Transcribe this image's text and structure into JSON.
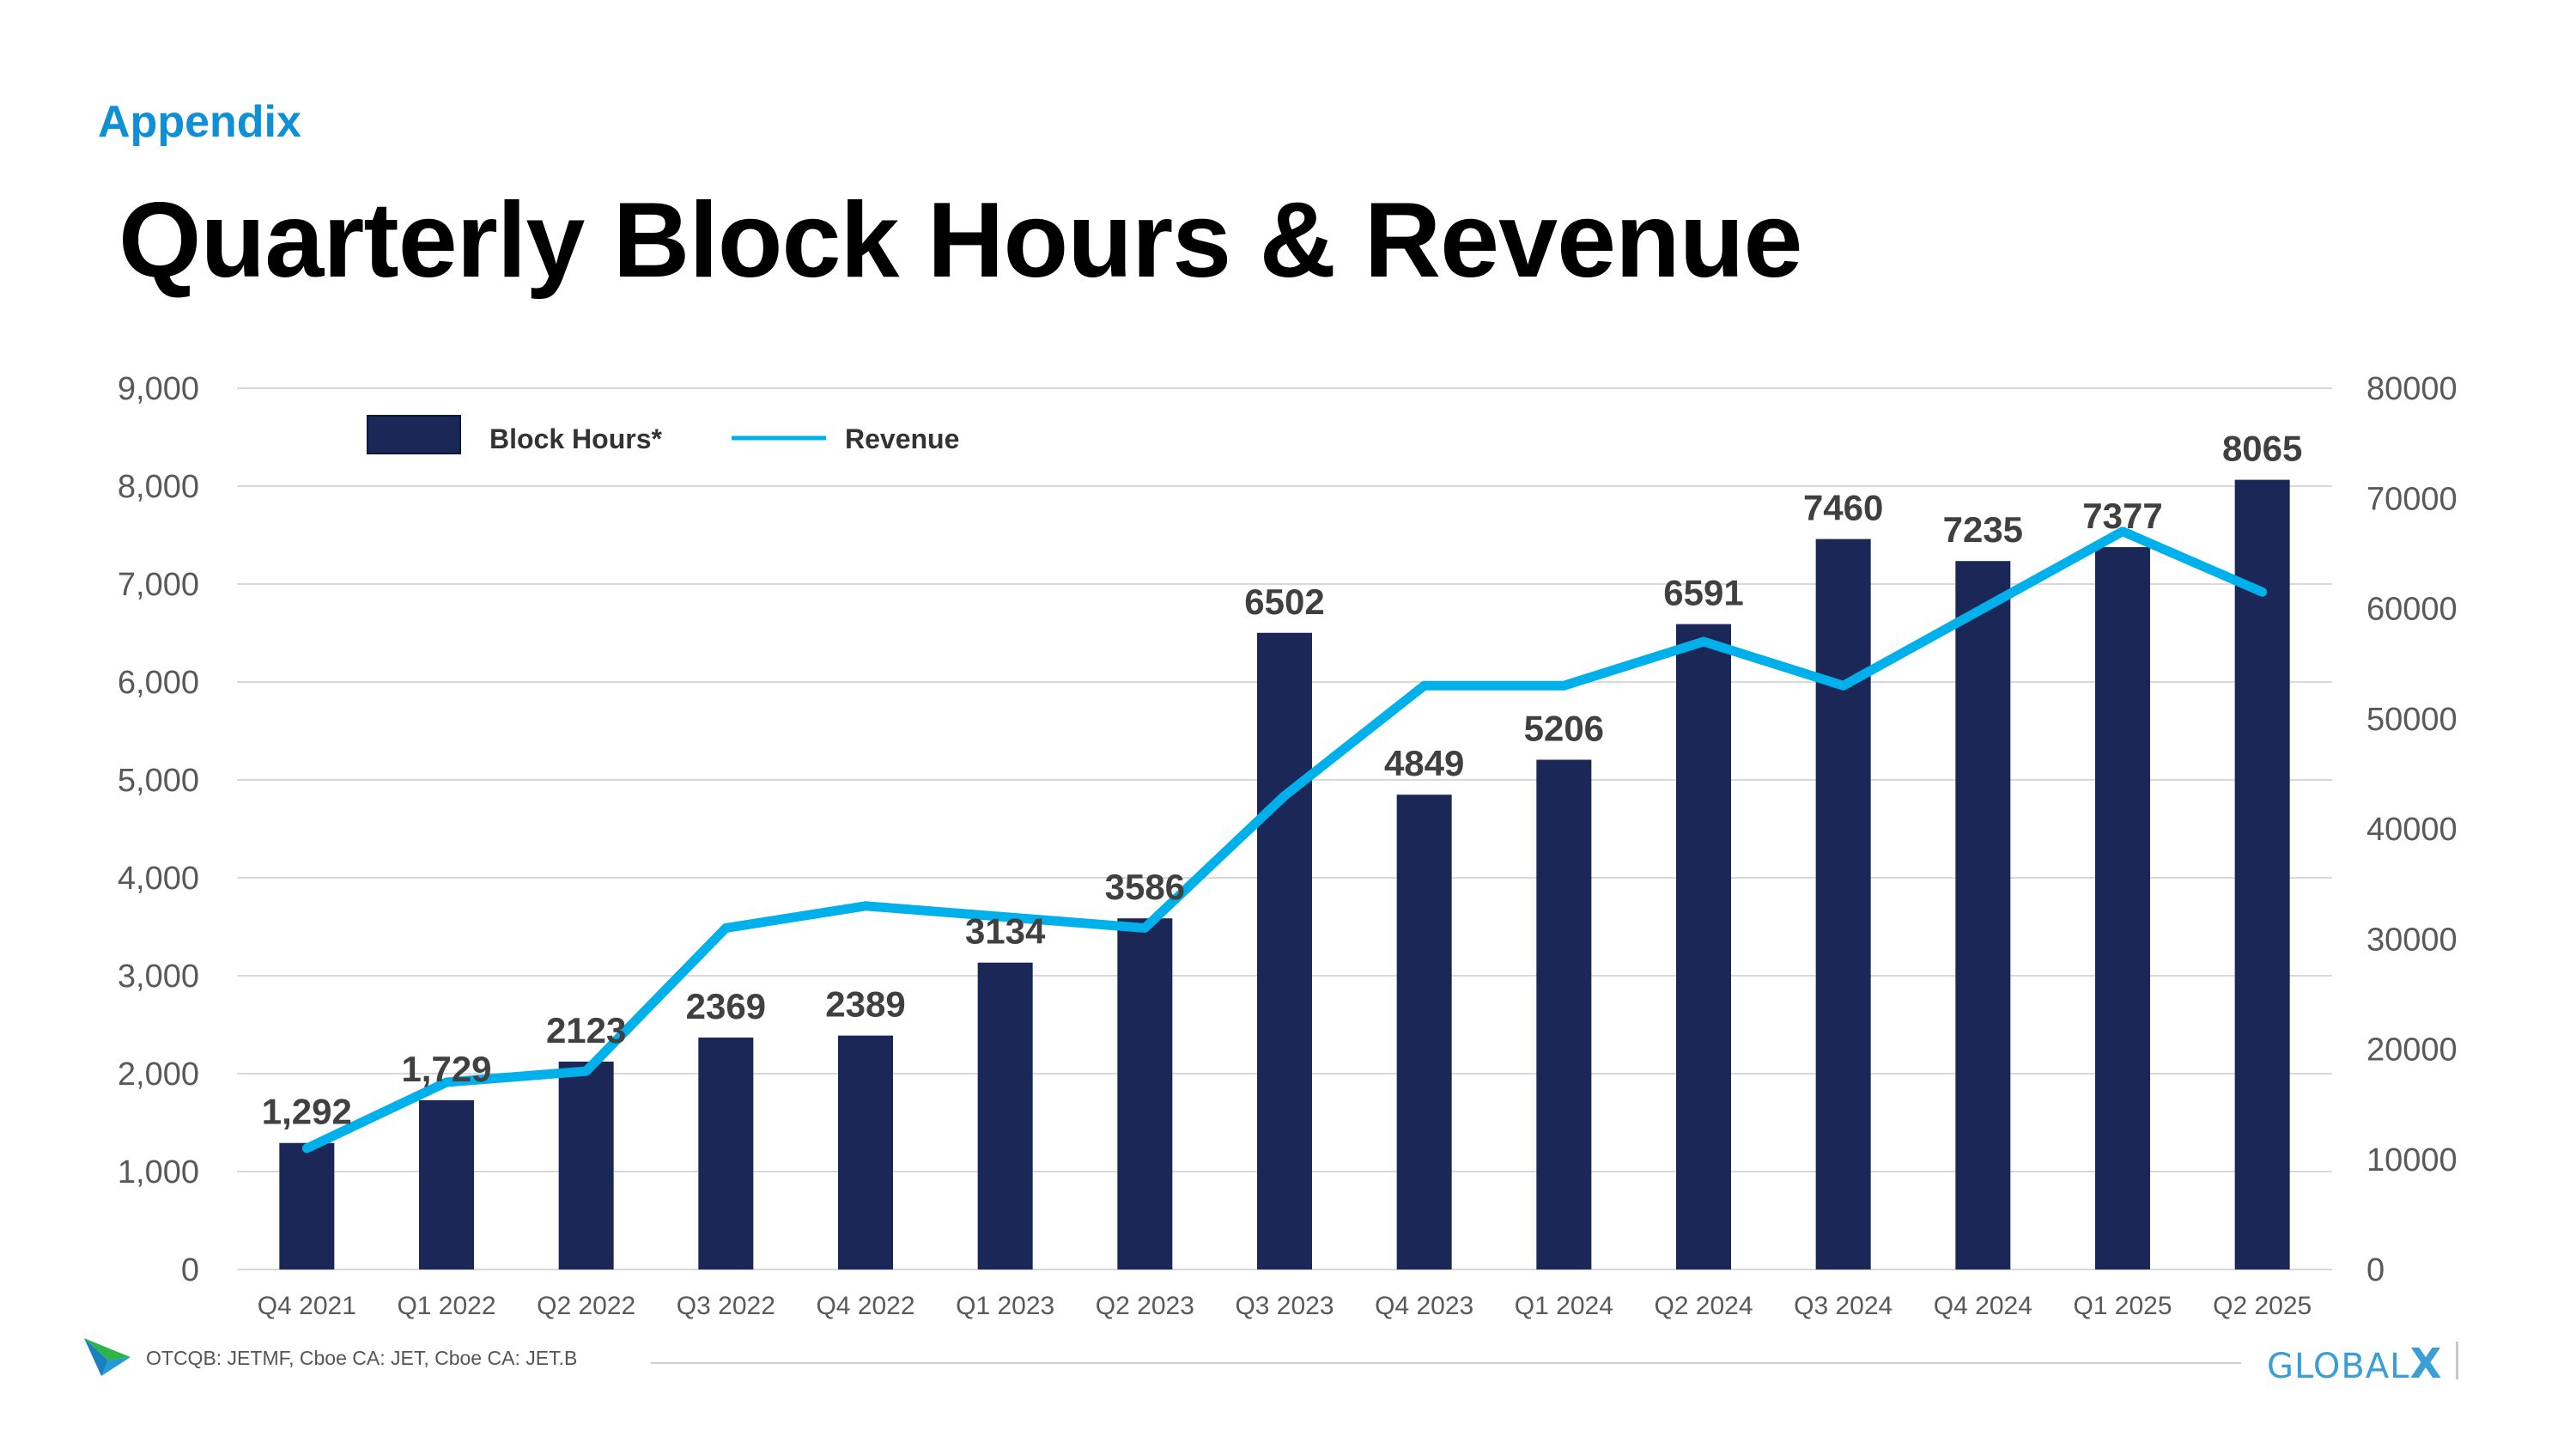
{
  "header": {
    "section_label": "Appendix",
    "title": "Quarterly Block Hours & Revenue"
  },
  "colors": {
    "bar": "#1a2757",
    "line": "#00b0ea",
    "accent": "#0e8fd6",
    "grid": "#d9d9d9",
    "tick_text": "#595959",
    "label_text": "#404040"
  },
  "chart_data": {
    "type": "bar",
    "title": "Quarterly Block Hours & Revenue",
    "legend": {
      "placement": "top-left",
      "entries": [
        "Block Hours*",
        "Revenue"
      ]
    },
    "categories": [
      "Q4 2021",
      "Q1 2022",
      "Q2 2022",
      "Q3 2022",
      "Q4 2022",
      "Q1 2023",
      "Q2 2023",
      "Q3 2023",
      "Q4 2023",
      "Q1 2024",
      "Q2 2024",
      "Q3 2024",
      "Q4 2024",
      "Q1 2025",
      "Q2 2025"
    ],
    "series": [
      {
        "name": "Block Hours*",
        "type": "bar",
        "axis": "left",
        "values": [
          1292,
          1729,
          2123,
          2369,
          2389,
          3134,
          3586,
          6502,
          4849,
          5206,
          6591,
          7460,
          7235,
          7377,
          8065
        ],
        "labels": [
          "1,292",
          "1,729",
          "2123",
          "2369",
          "2389",
          "3134",
          "3586",
          "6502",
          "4849",
          "5206",
          "6591",
          "7460",
          "7235",
          "7377",
          "8065"
        ]
      },
      {
        "name": "Revenue",
        "type": "line",
        "axis": "right",
        "values": [
          11000,
          17000,
          18000,
          31000,
          33000,
          32000,
          31000,
          43000,
          53000,
          53000,
          57000,
          53000,
          60000,
          67000,
          61500
        ]
      }
    ],
    "left_axis": {
      "range": [
        0,
        9000
      ],
      "ticks": [
        "0",
        "1,000",
        "2,000",
        "3,000",
        "4,000",
        "5,000",
        "6,000",
        "7,000",
        "8,000",
        "9,000"
      ]
    },
    "right_axis": {
      "range": [
        0,
        80000
      ],
      "ticks": [
        "0",
        "10000",
        "20000",
        "30000",
        "40000",
        "50000",
        "60000",
        "70000",
        "80000"
      ]
    },
    "grid": true
  },
  "footer": {
    "tickers": "OTCQB: JETMF, Cboe CA: JET, Cboe CA: JET.B",
    "brand": "GLOBAL",
    "brand_mark": "X"
  },
  "icons": {
    "company_logo": "green-blue-arrow-icon"
  }
}
